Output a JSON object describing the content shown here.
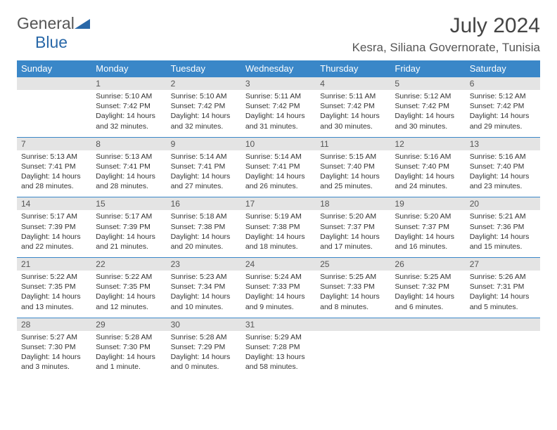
{
  "logo": {
    "text1": "General",
    "text2": "Blue"
  },
  "title": "July 2024",
  "location": "Kesra, Siliana Governorate, Tunisia",
  "colors": {
    "header_bg": "#3A87C8",
    "header_text": "#ffffff",
    "daynum_bg": "#e4e4e4",
    "row_border": "#3A87C8",
    "logo_blue": "#2968a8"
  },
  "day_headers": [
    "Sunday",
    "Monday",
    "Tuesday",
    "Wednesday",
    "Thursday",
    "Friday",
    "Saturday"
  ],
  "weeks": [
    [
      {
        "n": "",
        "sr": "",
        "ss": "",
        "dl": ""
      },
      {
        "n": "1",
        "sr": "Sunrise: 5:10 AM",
        "ss": "Sunset: 7:42 PM",
        "dl": "Daylight: 14 hours and 32 minutes."
      },
      {
        "n": "2",
        "sr": "Sunrise: 5:10 AM",
        "ss": "Sunset: 7:42 PM",
        "dl": "Daylight: 14 hours and 32 minutes."
      },
      {
        "n": "3",
        "sr": "Sunrise: 5:11 AM",
        "ss": "Sunset: 7:42 PM",
        "dl": "Daylight: 14 hours and 31 minutes."
      },
      {
        "n": "4",
        "sr": "Sunrise: 5:11 AM",
        "ss": "Sunset: 7:42 PM",
        "dl": "Daylight: 14 hours and 30 minutes."
      },
      {
        "n": "5",
        "sr": "Sunrise: 5:12 AM",
        "ss": "Sunset: 7:42 PM",
        "dl": "Daylight: 14 hours and 30 minutes."
      },
      {
        "n": "6",
        "sr": "Sunrise: 5:12 AM",
        "ss": "Sunset: 7:42 PM",
        "dl": "Daylight: 14 hours and 29 minutes."
      }
    ],
    [
      {
        "n": "7",
        "sr": "Sunrise: 5:13 AM",
        "ss": "Sunset: 7:41 PM",
        "dl": "Daylight: 14 hours and 28 minutes."
      },
      {
        "n": "8",
        "sr": "Sunrise: 5:13 AM",
        "ss": "Sunset: 7:41 PM",
        "dl": "Daylight: 14 hours and 28 minutes."
      },
      {
        "n": "9",
        "sr": "Sunrise: 5:14 AM",
        "ss": "Sunset: 7:41 PM",
        "dl": "Daylight: 14 hours and 27 minutes."
      },
      {
        "n": "10",
        "sr": "Sunrise: 5:14 AM",
        "ss": "Sunset: 7:41 PM",
        "dl": "Daylight: 14 hours and 26 minutes."
      },
      {
        "n": "11",
        "sr": "Sunrise: 5:15 AM",
        "ss": "Sunset: 7:40 PM",
        "dl": "Daylight: 14 hours and 25 minutes."
      },
      {
        "n": "12",
        "sr": "Sunrise: 5:16 AM",
        "ss": "Sunset: 7:40 PM",
        "dl": "Daylight: 14 hours and 24 minutes."
      },
      {
        "n": "13",
        "sr": "Sunrise: 5:16 AM",
        "ss": "Sunset: 7:40 PM",
        "dl": "Daylight: 14 hours and 23 minutes."
      }
    ],
    [
      {
        "n": "14",
        "sr": "Sunrise: 5:17 AM",
        "ss": "Sunset: 7:39 PM",
        "dl": "Daylight: 14 hours and 22 minutes."
      },
      {
        "n": "15",
        "sr": "Sunrise: 5:17 AM",
        "ss": "Sunset: 7:39 PM",
        "dl": "Daylight: 14 hours and 21 minutes."
      },
      {
        "n": "16",
        "sr": "Sunrise: 5:18 AM",
        "ss": "Sunset: 7:38 PM",
        "dl": "Daylight: 14 hours and 20 minutes."
      },
      {
        "n": "17",
        "sr": "Sunrise: 5:19 AM",
        "ss": "Sunset: 7:38 PM",
        "dl": "Daylight: 14 hours and 18 minutes."
      },
      {
        "n": "18",
        "sr": "Sunrise: 5:20 AM",
        "ss": "Sunset: 7:37 PM",
        "dl": "Daylight: 14 hours and 17 minutes."
      },
      {
        "n": "19",
        "sr": "Sunrise: 5:20 AM",
        "ss": "Sunset: 7:37 PM",
        "dl": "Daylight: 14 hours and 16 minutes."
      },
      {
        "n": "20",
        "sr": "Sunrise: 5:21 AM",
        "ss": "Sunset: 7:36 PM",
        "dl": "Daylight: 14 hours and 15 minutes."
      }
    ],
    [
      {
        "n": "21",
        "sr": "Sunrise: 5:22 AM",
        "ss": "Sunset: 7:35 PM",
        "dl": "Daylight: 14 hours and 13 minutes."
      },
      {
        "n": "22",
        "sr": "Sunrise: 5:22 AM",
        "ss": "Sunset: 7:35 PM",
        "dl": "Daylight: 14 hours and 12 minutes."
      },
      {
        "n": "23",
        "sr": "Sunrise: 5:23 AM",
        "ss": "Sunset: 7:34 PM",
        "dl": "Daylight: 14 hours and 10 minutes."
      },
      {
        "n": "24",
        "sr": "Sunrise: 5:24 AM",
        "ss": "Sunset: 7:33 PM",
        "dl": "Daylight: 14 hours and 9 minutes."
      },
      {
        "n": "25",
        "sr": "Sunrise: 5:25 AM",
        "ss": "Sunset: 7:33 PM",
        "dl": "Daylight: 14 hours and 8 minutes."
      },
      {
        "n": "26",
        "sr": "Sunrise: 5:25 AM",
        "ss": "Sunset: 7:32 PM",
        "dl": "Daylight: 14 hours and 6 minutes."
      },
      {
        "n": "27",
        "sr": "Sunrise: 5:26 AM",
        "ss": "Sunset: 7:31 PM",
        "dl": "Daylight: 14 hours and 5 minutes."
      }
    ],
    [
      {
        "n": "28",
        "sr": "Sunrise: 5:27 AM",
        "ss": "Sunset: 7:30 PM",
        "dl": "Daylight: 14 hours and 3 minutes."
      },
      {
        "n": "29",
        "sr": "Sunrise: 5:28 AM",
        "ss": "Sunset: 7:30 PM",
        "dl": "Daylight: 14 hours and 1 minute."
      },
      {
        "n": "30",
        "sr": "Sunrise: 5:28 AM",
        "ss": "Sunset: 7:29 PM",
        "dl": "Daylight: 14 hours and 0 minutes."
      },
      {
        "n": "31",
        "sr": "Sunrise: 5:29 AM",
        "ss": "Sunset: 7:28 PM",
        "dl": "Daylight: 13 hours and 58 minutes."
      },
      {
        "n": "",
        "sr": "",
        "ss": "",
        "dl": ""
      },
      {
        "n": "",
        "sr": "",
        "ss": "",
        "dl": ""
      },
      {
        "n": "",
        "sr": "",
        "ss": "",
        "dl": ""
      }
    ]
  ]
}
